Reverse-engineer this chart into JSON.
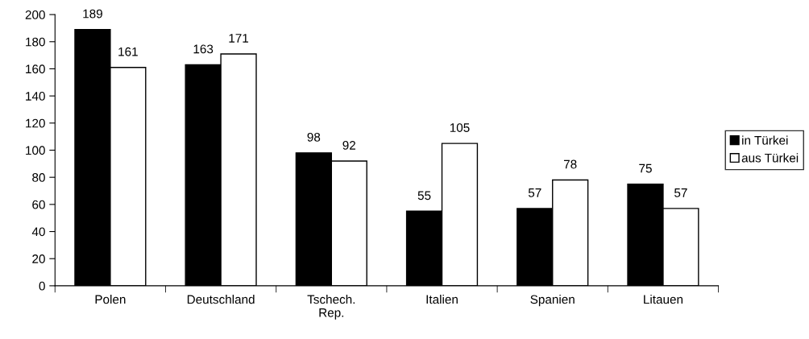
{
  "chart_data": {
    "type": "bar",
    "categories": [
      "Polen",
      "Deutschland",
      "Tschech.\nRep.",
      "Italien",
      "Spanien",
      "Litauen"
    ],
    "series": [
      {
        "name": "in Türkei",
        "color": "#000000",
        "values": [
          189,
          163,
          98,
          55,
          57,
          75
        ]
      },
      {
        "name": "aus Türkei",
        "color": "#ffffff",
        "values": [
          161,
          171,
          92,
          105,
          78,
          57
        ]
      }
    ],
    "ylim": [
      0,
      200
    ],
    "yticks": [
      0,
      20,
      40,
      60,
      80,
      100,
      120,
      140,
      160,
      180,
      200
    ],
    "data_labels": true,
    "grid": false,
    "legend": "right"
  }
}
